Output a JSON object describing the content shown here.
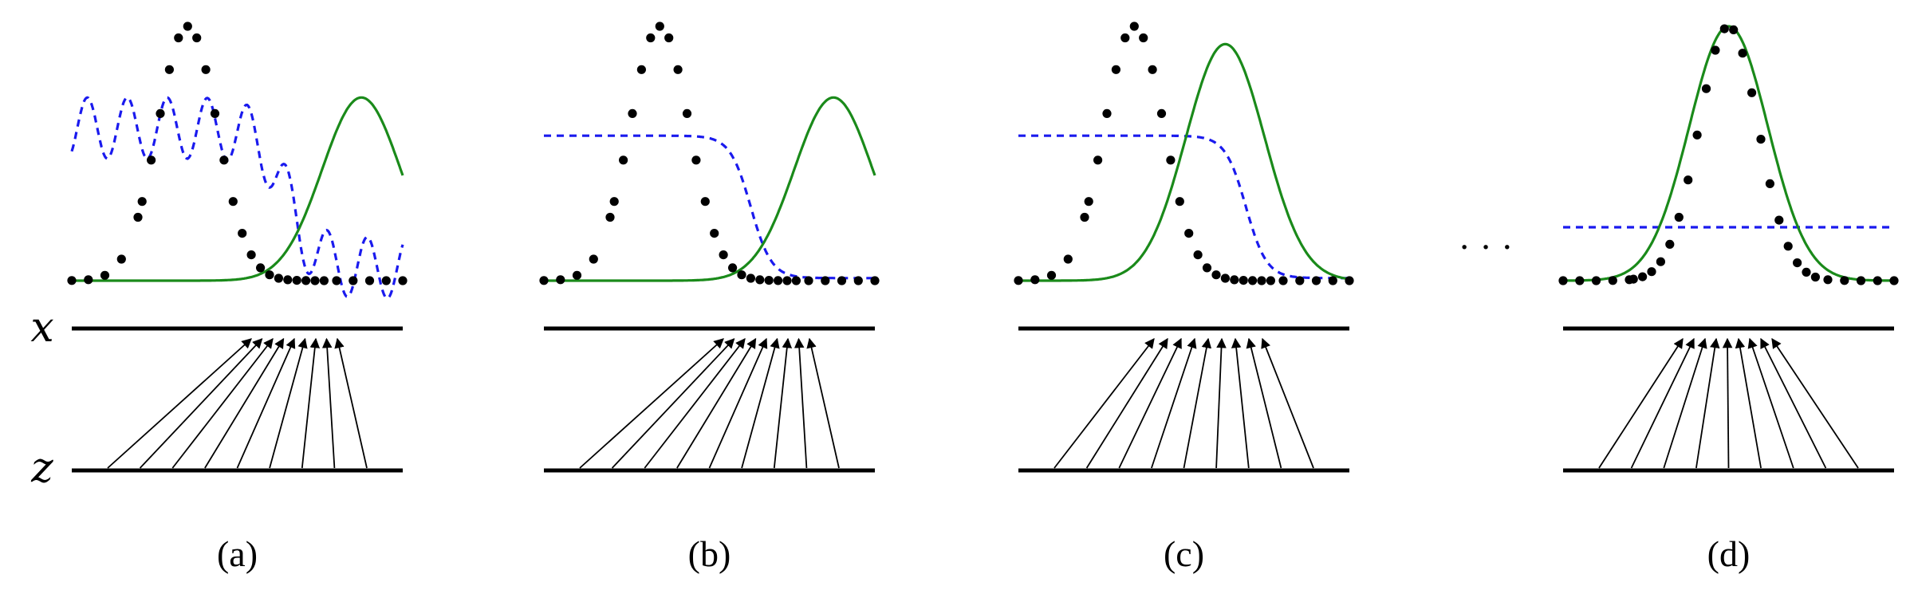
{
  "colors": {
    "data": "#000000",
    "generator": "#1a8a1a",
    "discriminator": "#1a1aee",
    "axis": "#000000"
  },
  "axis_labels": {
    "x": "x",
    "z": "z"
  },
  "ellipsis": "· · ·",
  "panels": [
    {
      "label": "(a)",
      "gen_mean": 3.0,
      "gen_sigma": 1.0,
      "gen_height": 0.72,
      "disc_type": "noisy",
      "z_map_a": 0.6,
      "z_map_b": 0.7,
      "arrow_count": 9
    },
    {
      "label": "(b)",
      "gen_mean": 3.0,
      "gen_sigma": 1.0,
      "gen_height": 0.72,
      "disc_type": "sigmoid",
      "disc_center": 1.0,
      "arrow_count": 9
    },
    {
      "label": "(c)",
      "gen_mean": 1.0,
      "gen_sigma": 1.0,
      "gen_height": 0.93,
      "disc_type": "sigmoid",
      "disc_center": 1.5,
      "arrow_count": 9
    },
    {
      "label": "(d)",
      "gen_mean": 0.0,
      "gen_sigma": 1.0,
      "gen_height": 1.0,
      "disc_type": "flat",
      "disc_level": 0.5,
      "arrow_count": 9
    }
  ]
}
